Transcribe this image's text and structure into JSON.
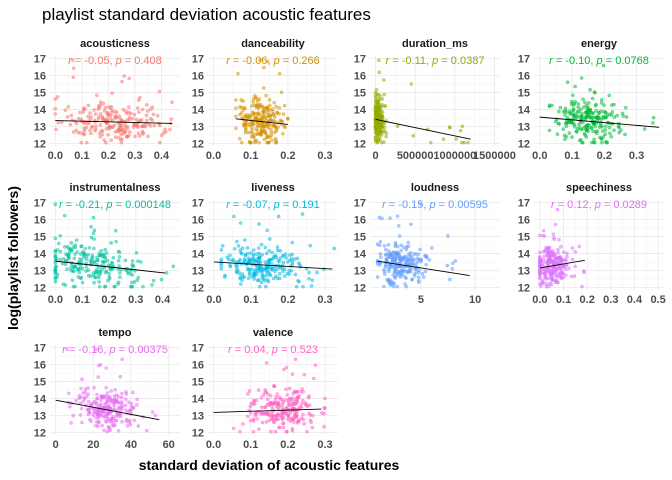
{
  "title": "playlist standard deviation acoustic features",
  "chart_data": {
    "type": "scatter",
    "title": "playlist standard deviation acoustic features",
    "xlabel": "standard deviation of acoustic features",
    "ylabel": "log(playlist followers)",
    "ylim": [
      12,
      17
    ],
    "y_ticks": [
      12,
      13,
      14,
      15,
      16,
      17
    ],
    "grid": true,
    "panels": [
      {
        "name": "acousticness",
        "color": "#F8766D",
        "x_ticks": [
          0.0,
          0.1,
          0.2,
          0.3,
          0.4
        ],
        "x_tick_labels": [
          "0.0",
          "0.1",
          "0.2",
          "0.3",
          "0.4"
        ],
        "xlim": [
          -0.02,
          0.47
        ],
        "x_center": 0.22,
        "x_spread": 0.1,
        "x_min": 0.0,
        "x_max": 0.44,
        "trend": [
          [
            0.0,
            13.35
          ],
          [
            0.44,
            13.18
          ]
        ],
        "annotation": {
          "r": "-0.05",
          "p": "0.408"
        }
      },
      {
        "name": "danceability",
        "color": "#D39200",
        "x_ticks": [
          0.0,
          0.1,
          0.2,
          0.3
        ],
        "x_tick_labels": [
          "0.0",
          "0.1",
          "0.2",
          "0.3"
        ],
        "xlim": [
          -0.015,
          0.335
        ],
        "x_center": 0.13,
        "x_spread": 0.03,
        "x_min": 0.06,
        "x_max": 0.2,
        "trend": [
          [
            0.06,
            13.45
          ],
          [
            0.2,
            13.12
          ]
        ],
        "annotation": {
          "r": "-0.06",
          "p": "0.266"
        }
      },
      {
        "name": "duration_ms",
        "color": "#93AA00",
        "x_ticks": [
          0,
          500000,
          1000000,
          1500000
        ],
        "x_tick_labels": [
          "0",
          "500000",
          "1000000",
          "1500000"
        ],
        "xlim": [
          -70000,
          1570000
        ],
        "x_center": 40000,
        "x_spread": 35000,
        "x_min": 0,
        "x_max": 1200000,
        "trend": [
          [
            0,
            13.42
          ],
          [
            1200000,
            12.25
          ]
        ],
        "annotation": {
          "r": "-0.11",
          "p": "0.0387"
        }
      },
      {
        "name": "energy",
        "color": "#00BA38",
        "x_ticks": [
          0.0,
          0.1,
          0.2,
          0.3
        ],
        "x_tick_labels": [
          "0.0",
          "0.1",
          "0.2",
          "0.3"
        ],
        "xlim": [
          -0.018,
          0.385
        ],
        "x_center": 0.15,
        "x_spread": 0.05,
        "x_min": 0.03,
        "x_max": 0.37,
        "trend": [
          [
            0.0,
            13.55
          ],
          [
            0.37,
            12.95
          ]
        ],
        "annotation": {
          "r": "-0.10",
          "p": "0.0768"
        }
      },
      {
        "name": "instrumentalness",
        "color": "#00C19F",
        "x_ticks": [
          0.0,
          0.1,
          0.2,
          0.3,
          0.4
        ],
        "x_tick_labels": [
          "0.0",
          "0.1",
          "0.2",
          "0.3",
          "0.4"
        ],
        "xlim": [
          -0.02,
          0.465
        ],
        "x_center": 0.12,
        "x_spread": 0.1,
        "x_min": 0.0,
        "x_max": 0.44,
        "trend": [
          [
            0.0,
            13.55
          ],
          [
            0.41,
            12.85
          ]
        ],
        "annotation": {
          "r": "-0.21",
          "p": "0.000148"
        }
      },
      {
        "name": "liveness",
        "color": "#00B9E3",
        "x_ticks": [
          0.0,
          0.1,
          0.2,
          0.3
        ],
        "x_tick_labels": [
          "0.0",
          "0.1",
          "0.2",
          "0.3"
        ],
        "xlim": [
          -0.016,
          0.335
        ],
        "x_center": 0.13,
        "x_spread": 0.05,
        "x_min": 0.02,
        "x_max": 0.33,
        "trend": [
          [
            0.0,
            13.5
          ],
          [
            0.32,
            13.08
          ]
        ],
        "annotation": {
          "r": "-0.07",
          "p": "0.191"
        }
      },
      {
        "name": "loudness",
        "color": "#619CFF",
        "x_ticks": [
          5,
          10
        ],
        "x_tick_labels": [
          "5",
          "10"
        ],
        "xlim": [
          0.3,
          12.3
        ],
        "x_center": 3.0,
        "x_spread": 1.2,
        "x_min": 1.0,
        "x_max": 9.5,
        "trend": [
          [
            1.0,
            13.55
          ],
          [
            9.5,
            12.7
          ]
        ],
        "annotation": {
          "r": "-0.15",
          "p": "0.00595"
        }
      },
      {
        "name": "speechiness",
        "color": "#DB72FB",
        "x_ticks": [
          0.0,
          0.1,
          0.2,
          0.3,
          0.4,
          0.5
        ],
        "x_tick_labels": [
          "0.0",
          "0.1",
          "0.2",
          "0.3",
          "0.4",
          "0.5"
        ],
        "xlim": [
          -0.025,
          0.525
        ],
        "x_center": 0.05,
        "x_spread": 0.035,
        "x_min": 0.0,
        "x_max": 0.19,
        "trend": [
          [
            0.0,
            13.15
          ],
          [
            0.19,
            13.6
          ]
        ],
        "annotation": {
          "r": "0.12",
          "p": "0.0289"
        }
      },
      {
        "name": "tempo",
        "color": "#E76BF3",
        "x_ticks": [
          0,
          20,
          40,
          60
        ],
        "x_tick_labels": [
          "0",
          "20",
          "40",
          "60"
        ],
        "xlim": [
          -3,
          66
        ],
        "x_center": 28,
        "x_spread": 7,
        "x_min": 5,
        "x_max": 55,
        "trend": [
          [
            0,
            13.9
          ],
          [
            55,
            12.75
          ]
        ],
        "annotation": {
          "r": "-0.16",
          "p": "0.00375"
        }
      },
      {
        "name": "valence",
        "color": "#FF61C3",
        "x_ticks": [
          0.0,
          0.1,
          0.2,
          0.3
        ],
        "x_tick_labels": [
          "0.0",
          "0.1",
          "0.2",
          "0.3"
        ],
        "xlim": [
          -0.015,
          0.335
        ],
        "x_center": 0.19,
        "x_spread": 0.045,
        "x_min": 0.02,
        "x_max": 0.3,
        "trend": [
          [
            0.0,
            13.18
          ],
          [
            0.29,
            13.38
          ]
        ],
        "annotation": {
          "r": "0.04",
          "p": "0.523"
        }
      }
    ]
  }
}
